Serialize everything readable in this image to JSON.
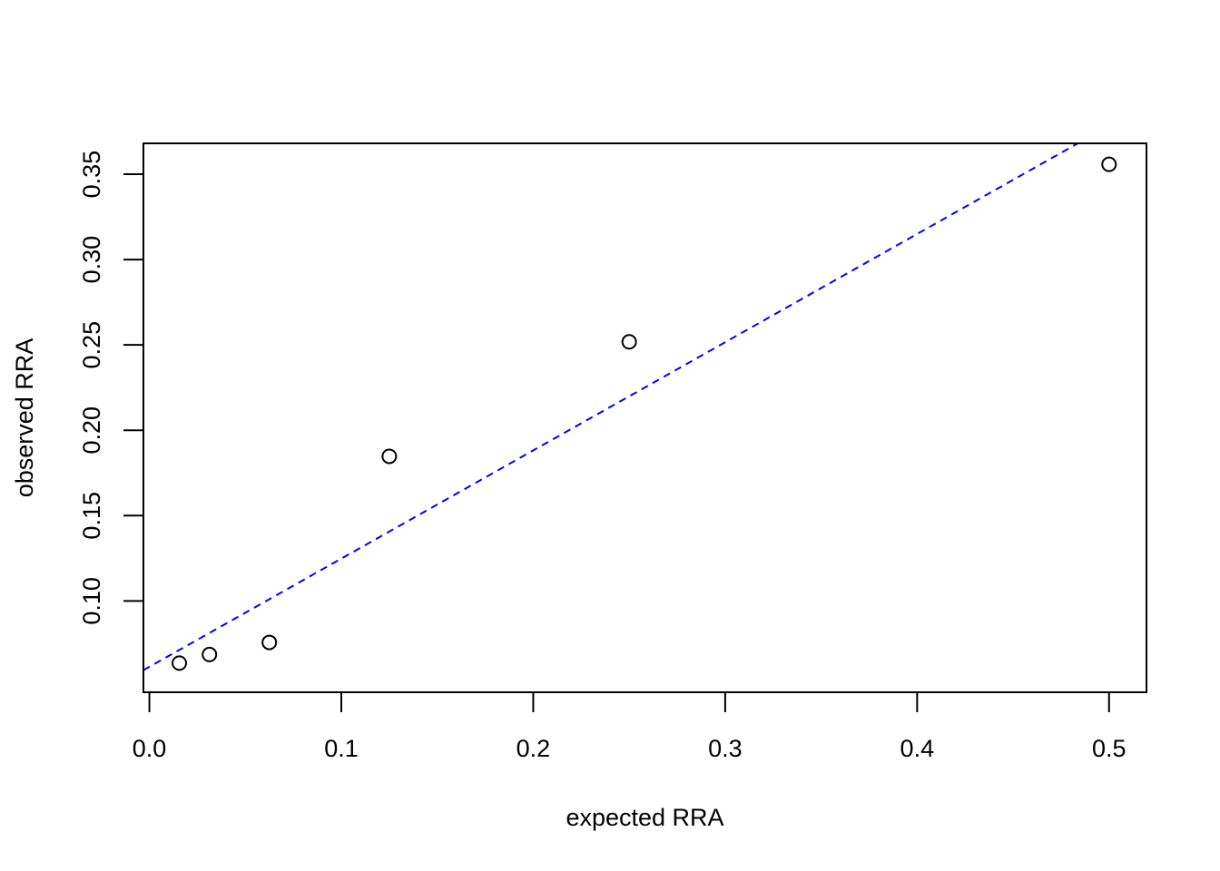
{
  "chart_data": {
    "type": "scatter",
    "title": "",
    "xlabel": "expected RRA",
    "ylabel": "observed RRA",
    "xlim": [
      -0.0031,
      0.5195
    ],
    "ylim": [
      0.0465,
      0.3681
    ],
    "x_ticks": [
      0.0,
      0.1,
      0.2,
      0.3,
      0.4,
      0.5
    ],
    "x_tick_labels": [
      "0.0",
      "0.1",
      "0.2",
      "0.3",
      "0.4",
      "0.5"
    ],
    "y_ticks": [
      0.1,
      0.15,
      0.2,
      0.25,
      0.3,
      0.35
    ],
    "y_tick_labels": [
      "0.10",
      "0.15",
      "0.20",
      "0.25",
      "0.30",
      "0.35"
    ],
    "points": {
      "x": [
        0.0156,
        0.0313,
        0.0625,
        0.125,
        0.25,
        0.5
      ],
      "y": [
        0.0636,
        0.0686,
        0.0757,
        0.1847,
        0.2518,
        0.3558
      ]
    },
    "marker": "open-circle",
    "marker_color": "#000000",
    "reference_line": {
      "style": "dashed",
      "color": "#0000ff",
      "intercept": 0.0614,
      "slope": 0.634
    },
    "grid": false,
    "legend": "none"
  }
}
